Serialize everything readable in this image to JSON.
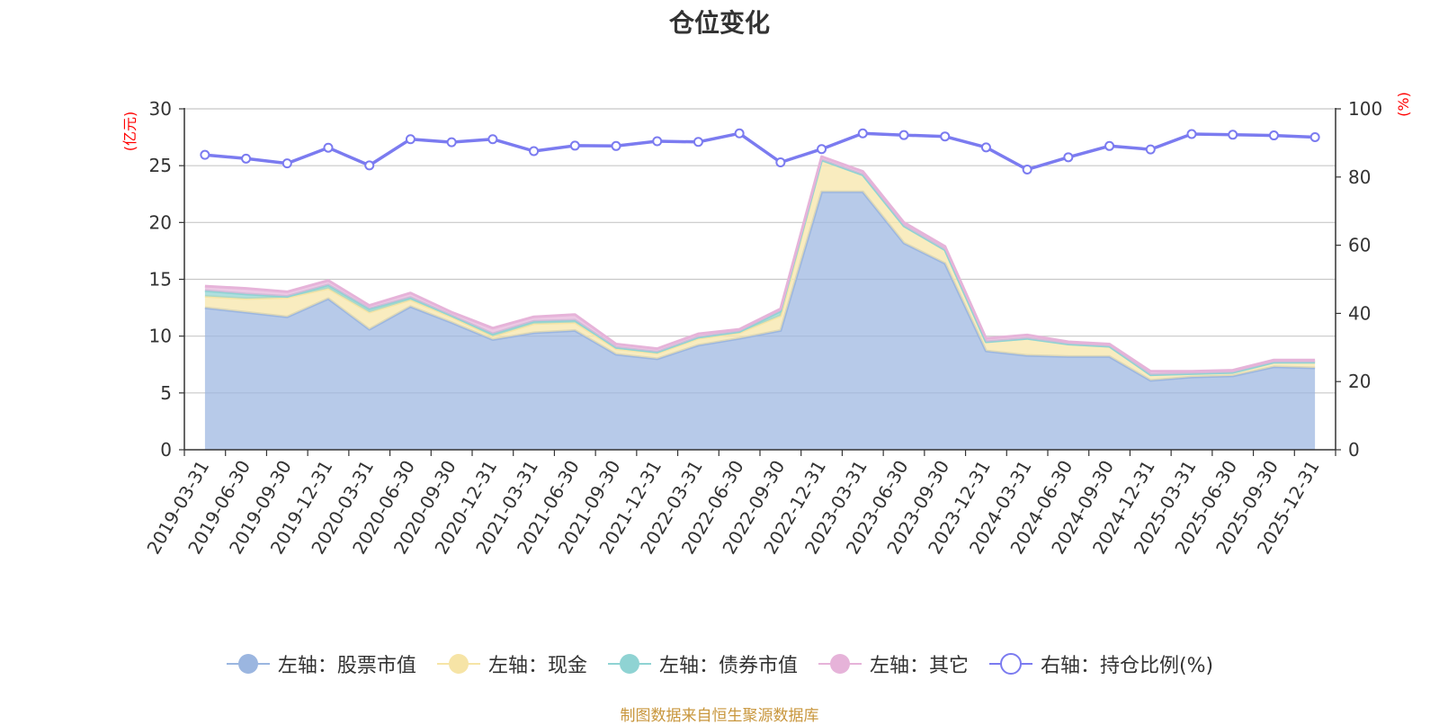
{
  "title": "仓位变化",
  "source_note": "制图数据来自恒生聚源数据库",
  "left_unit": "(亿元)",
  "right_unit": "(%)",
  "legend": [
    {
      "label": "左轴：股票市值",
      "color": "#9bb6e0",
      "marker": "filled"
    },
    {
      "label": "左轴：现金",
      "color": "#f6e4a6",
      "marker": "filled"
    },
    {
      "label": "左轴：债券市值",
      "color": "#8fd3d3",
      "marker": "filled"
    },
    {
      "label": "左轴：其它",
      "color": "#e6b3d9",
      "marker": "filled"
    },
    {
      "label": "右轴：持仓比例(%)",
      "color": "#7b7bf0",
      "marker": "hollow"
    }
  ],
  "chart_data": {
    "type": "area",
    "title": "仓位变化",
    "categories": [
      "2019-03-31",
      "2019-06-30",
      "2019-09-30",
      "2019-12-31",
      "2020-03-31",
      "2020-06-30",
      "2020-09-30",
      "2020-12-31",
      "2021-03-31",
      "2021-06-30",
      "2021-09-30",
      "2021-12-31",
      "2022-03-31",
      "2022-06-30",
      "2022-09-30",
      "2022-12-31",
      "2023-03-31",
      "2023-06-30",
      "2023-09-30",
      "2023-12-31",
      "2024-03-31",
      "2024-06-30",
      "2024-09-30",
      "2024-12-31",
      "2025-03-31",
      "2025-06-30",
      "2025-09-30",
      "2025-12-31"
    ],
    "left_axis": {
      "label": "(亿元)",
      "ylim": [
        0,
        30
      ],
      "ticks": [
        0,
        5,
        10,
        15,
        20,
        25,
        30
      ]
    },
    "right_axis": {
      "label": "(%)",
      "ylim": [
        0,
        100
      ],
      "ticks": [
        0,
        20,
        40,
        60,
        80,
        100
      ]
    },
    "stacked": true,
    "series": [
      {
        "name": "左轴：股票市值",
        "axis": "left",
        "type": "area",
        "color": "#9bb6e0",
        "values": [
          12.5,
          12.1,
          11.7,
          13.3,
          10.6,
          12.6,
          11.2,
          9.7,
          10.3,
          10.5,
          8.4,
          8.0,
          9.2,
          9.8,
          10.5,
          22.7,
          22.7,
          18.2,
          16.4,
          8.7,
          8.3,
          8.2,
          8.2,
          6.1,
          6.4,
          6.5,
          7.3,
          7.2
        ]
      },
      {
        "name": "左轴：现金",
        "axis": "left",
        "type": "area",
        "color": "#f6e4a6",
        "values": [
          1.0,
          1.2,
          1.7,
          0.9,
          1.5,
          0.6,
          0.5,
          0.3,
          0.8,
          0.7,
          0.5,
          0.5,
          0.6,
          0.5,
          1.3,
          2.8,
          1.5,
          1.5,
          1.2,
          0.8,
          1.5,
          1.1,
          0.9,
          0.5,
          0.3,
          0.3,
          0.4,
          0.5
        ]
      },
      {
        "name": "左轴：债券市值",
        "axis": "left",
        "type": "area",
        "color": "#8fd3d3",
        "values": [
          0.5,
          0.4,
          0.1,
          0.3,
          0.3,
          0.2,
          0.1,
          0.2,
          0.2,
          0.2,
          0.1,
          0.1,
          0.1,
          0.1,
          0.4,
          0.0,
          0.0,
          0.0,
          0.0,
          0.0,
          0.0,
          0.0,
          0.0,
          0.0,
          0.0,
          0.0,
          0.0,
          0.0
        ]
      },
      {
        "name": "左轴：其它",
        "axis": "left",
        "type": "area",
        "color": "#e6b3d9",
        "values": [
          0.4,
          0.5,
          0.4,
          0.4,
          0.3,
          0.4,
          0.3,
          0.5,
          0.4,
          0.5,
          0.3,
          0.3,
          0.3,
          0.2,
          0.2,
          0.3,
          0.3,
          0.3,
          0.3,
          0.3,
          0.3,
          0.2,
          0.2,
          0.3,
          0.2,
          0.2,
          0.2,
          0.2
        ]
      },
      {
        "name": "右轴：持仓比例(%)",
        "axis": "right",
        "type": "line",
        "color": "#7b7bf0",
        "values": [
          86.5,
          85.4,
          84.0,
          88.6,
          83.4,
          91.1,
          90.2,
          91.1,
          87.6,
          89.2,
          89.1,
          90.5,
          90.3,
          92.8,
          84.3,
          88.2,
          92.8,
          92.3,
          91.9,
          88.7,
          82.2,
          85.8,
          89.1,
          88.1,
          92.6,
          92.4,
          92.2,
          91.7
        ]
      }
    ],
    "grid": true,
    "legend_position": "bottom"
  }
}
